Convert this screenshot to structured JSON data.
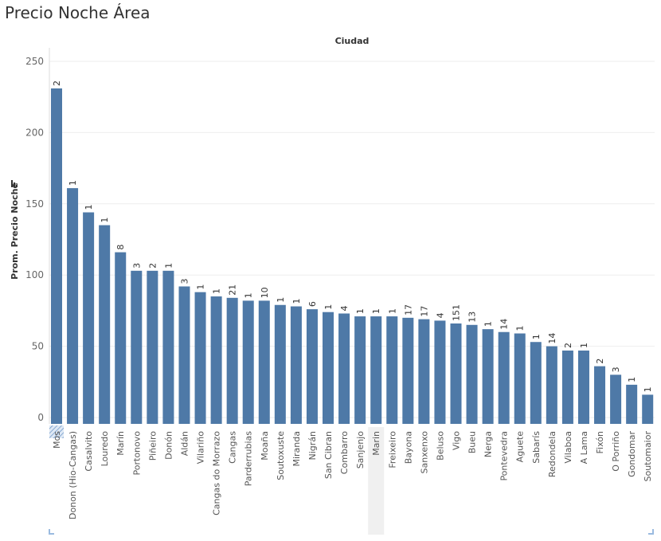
{
  "title": "Precio Noche Área",
  "accent": "#4e79a7",
  "chart_data": {
    "type": "bar",
    "title": "Precio Noche Área",
    "column_header": "Ciudad",
    "ylabel": "Prom. Precio Noche",
    "xlabel": "",
    "ylim": [
      0,
      258
    ],
    "yticks": [
      0,
      50,
      100,
      150,
      200,
      250
    ],
    "grid": true,
    "categories": [
      "Mos",
      "Donon (Hio-Cangas)",
      "Casalvito",
      "Louredo",
      "Marín",
      "Portonovo",
      "Piñeiro",
      "Donón",
      "Aldán",
      "Vilariño",
      "Cangas do Morrazo",
      "Cangas",
      "Parderrubias",
      "Moaña",
      "Soutoxuste",
      "Miranda",
      "Nigrán",
      "San Cibran",
      "Combarro",
      "Sanjenjo",
      "Marin",
      "Freixeiro",
      "Bayona",
      "Sanxenxo",
      "Beluso",
      "Vigo",
      "Bueu",
      "Nerga",
      "Pontevedra",
      "Aguete",
      "Sabarís",
      "Redondela",
      "Vilaboa",
      "A Lama",
      "Fixón",
      "O Porriño",
      "Gondomar",
      "Soutomaior"
    ],
    "values": [
      231,
      161,
      144,
      135,
      116,
      103,
      103,
      103,
      92,
      88,
      85,
      84,
      82,
      82,
      79,
      78,
      76,
      74,
      73,
      71,
      71,
      71,
      70,
      69,
      68,
      66,
      65,
      62,
      60,
      59,
      53,
      50,
      47,
      47,
      36,
      30,
      23,
      16
    ],
    "labels": [
      "2",
      "1",
      "1",
      "1",
      "8",
      "3",
      "2",
      "1",
      "3",
      "1",
      "1",
      "21",
      "1",
      "10",
      "1",
      "1",
      "6",
      "1",
      "4",
      "1",
      "1",
      "1",
      "17",
      "17",
      "4",
      "151",
      "13",
      "1",
      "14",
      "1",
      "1",
      "14",
      "2",
      "1",
      "2",
      "3",
      "1",
      "1"
    ]
  }
}
